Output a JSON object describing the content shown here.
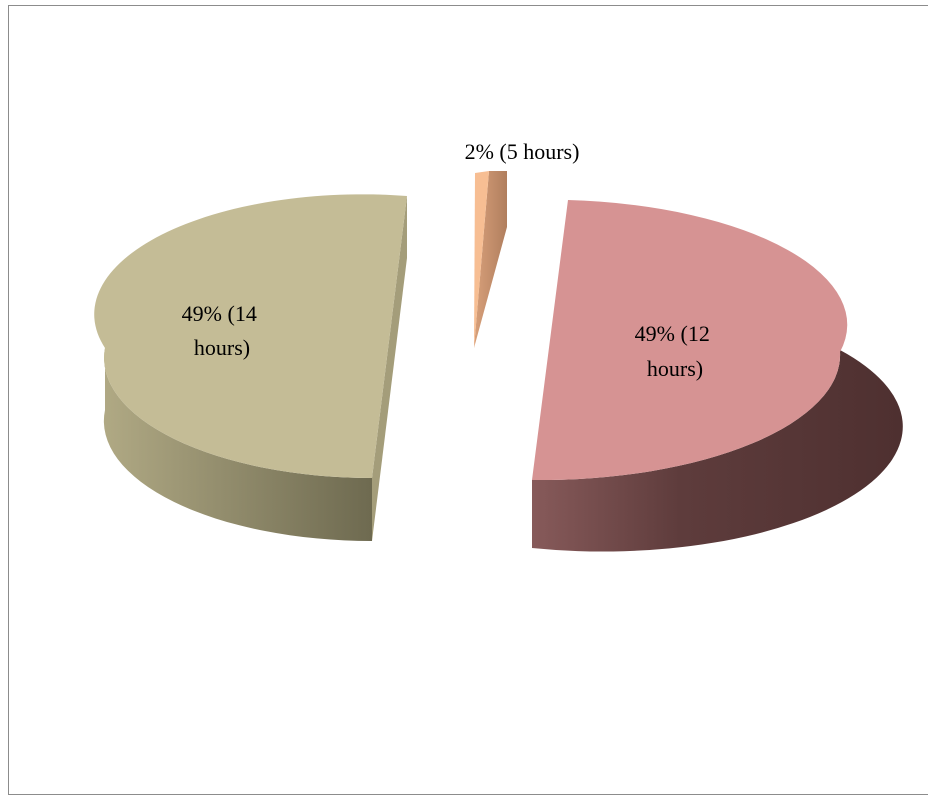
{
  "chart_data": {
    "type": "pie",
    "style": "3d-exploded",
    "legend": "none",
    "slices": [
      {
        "name": "",
        "percent": 2,
        "hours": 5,
        "label_lines": [
          "2% (5 hours)"
        ],
        "color": "#F7BE93",
        "start_deg": -9,
        "end_deg": 0
      },
      {
        "name": "",
        "percent": 49,
        "hours": 12,
        "label_lines": [
          "49% (12",
          "hours)"
        ],
        "color": "#D69393",
        "start_deg": 5,
        "end_deg": 181
      },
      {
        "name": "",
        "percent": 49,
        "hours": 14,
        "label_lines": [
          "49% (14",
          "hours)"
        ],
        "color": "#C4BC96",
        "start_deg": 182,
        "end_deg": 359
      }
    ]
  }
}
